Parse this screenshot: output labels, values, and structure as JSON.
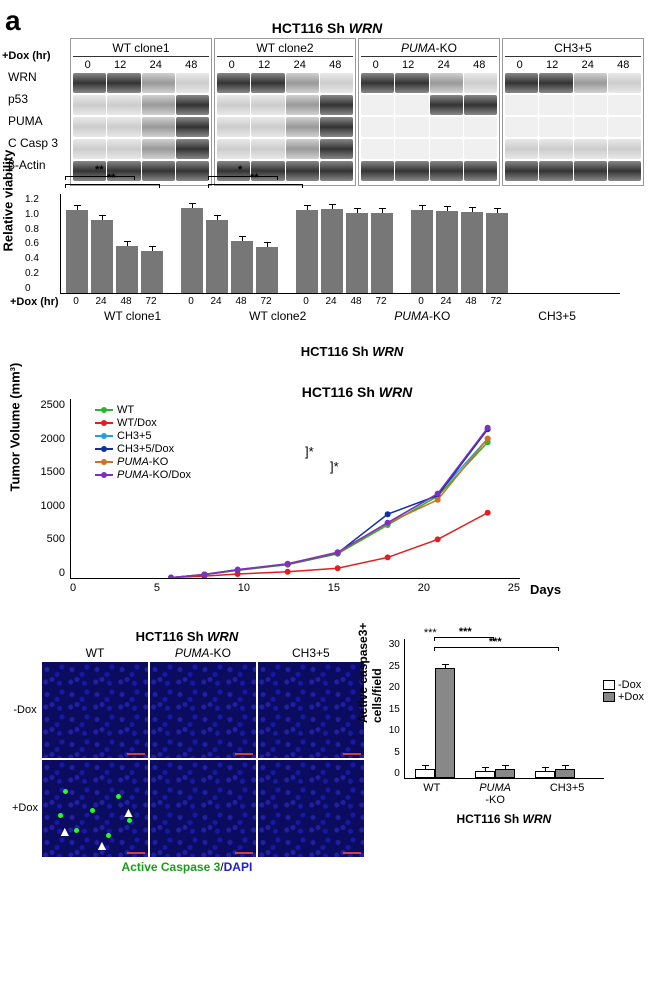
{
  "panel_label": "a",
  "blot": {
    "title_pre": "HCT116 Sh ",
    "title_italic": "WRN",
    "dox_label": "+Dox (hr)",
    "times": [
      "0",
      "12",
      "24",
      "48"
    ],
    "cols": [
      "WT clone1",
      "WT clone2",
      "PUMA-KO",
      "CH3+5"
    ],
    "rows": [
      "WRN",
      "p53",
      "PUMA",
      "C Casp 3",
      "β-Actin"
    ]
  },
  "viability": {
    "ylabel": "Relative viability",
    "yticks": [
      "1.2",
      "1.0",
      "0.8",
      "0.6",
      "0.4",
      "0.2",
      "0"
    ],
    "xlabel": "+Dox (hr)",
    "times": [
      "0",
      "24",
      "48",
      "72"
    ],
    "groups": [
      "WT clone1",
      "WT clone2",
      "PUMA-KO",
      "CH3+5"
    ],
    "subtitle_pre": "HCT116 Sh ",
    "subtitle_italic": "WRN",
    "sig1": "**",
    "sig2": "**",
    "sig3": "*",
    "sig4": "**",
    "data": {
      "WT clone1": [
        1.0,
        0.88,
        0.57,
        0.5
      ],
      "WT clone2": [
        1.02,
        0.88,
        0.63,
        0.55
      ],
      "PUMA-KO": [
        1.0,
        1.01,
        0.96,
        0.96
      ],
      "CH3+5": [
        1.0,
        0.99,
        0.97,
        0.96
      ]
    },
    "bar_color": "#777777",
    "ymax": 1.2
  },
  "tumor": {
    "title_pre": "HCT116 Sh ",
    "title_italic": "WRN",
    "ylabel": "Tumor Volume (mm³)",
    "yticks": [
      "2500",
      "2000",
      "1500",
      "1000",
      "500",
      "0"
    ],
    "xticks": [
      "0",
      "5",
      "10",
      "15",
      "20",
      "25"
    ],
    "xlabel": "Days",
    "legend": [
      "WT",
      "WT/Dox",
      "CH3+5",
      "CH3+5/Dox",
      "PUMA-KO",
      "PUMA-KO/Dox"
    ],
    "colors": {
      "WT": "#2db32d",
      "WT/Dox": "#e02020",
      "CH3+5": "#20a0e0",
      "CH3+5/Dox": "#1030a0",
      "PUMA-KO": "#d07020",
      "PUMA-KO/Dox": "#8030c0"
    },
    "sig": "*",
    "days": [
      6,
      8,
      10,
      13,
      16,
      19,
      22,
      25
    ],
    "series": {
      "WT": [
        20,
        60,
        120,
        200,
        350,
        750,
        1150,
        1900
      ],
      "WT/Dox": [
        20,
        40,
        70,
        100,
        150,
        300,
        550,
        920
      ],
      "CH3+5": [
        20,
        65,
        130,
        210,
        370,
        780,
        1180,
        1950
      ],
      "CH3+5/Dox": [
        20,
        60,
        125,
        205,
        360,
        900,
        1160,
        2080
      ],
      "PUMA-KO": [
        20,
        62,
        128,
        208,
        365,
        775,
        1100,
        1950
      ],
      "PUMA-KO/Dox": [
        20,
        63,
        130,
        212,
        372,
        782,
        1185,
        2100
      ]
    },
    "xlim": [
      0,
      27
    ],
    "ylim": [
      0,
      2500
    ]
  },
  "if": {
    "title_pre": "HCT116 Sh ",
    "title_italic": "WRN",
    "cols": [
      "WT",
      "PUMA-KO",
      "CH3+5"
    ],
    "rows": [
      "-Dox",
      "+Dox"
    ],
    "caption_green": "Active Caspase 3",
    "caption_sep": "/",
    "caption_blue": "DAPI"
  },
  "casp3": {
    "ylabel": "Active caspase3+\ncells/field",
    "yticks": [
      "30",
      "25",
      "20",
      "15",
      "10",
      "5",
      "0"
    ],
    "groups": [
      "WT",
      "PUMA\n-KO",
      "CH3+5"
    ],
    "subtitle_pre": "HCT116 Sh ",
    "subtitle_italic": "WRN",
    "legend": [
      "-Dox",
      "+Dox"
    ],
    "sig": "***",
    "data": {
      "WT": [
        2.0,
        23.5
      ],
      "PUMA-KO": [
        1.5,
        2.0
      ],
      "CH3+5": [
        1.5,
        2.0
      ]
    },
    "ymax": 30,
    "colors": {
      "minus": "#ffffff",
      "plus": "#888888"
    }
  }
}
